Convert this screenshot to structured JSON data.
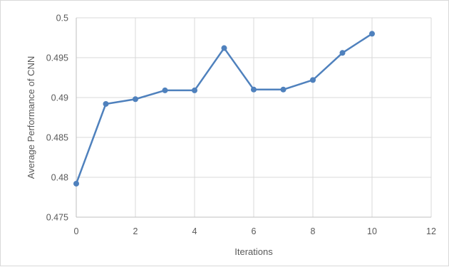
{
  "chart_data": {
    "type": "line",
    "title": "",
    "xlabel": "Iterations",
    "ylabel": "Average Performance  of CNN",
    "xlim": [
      0,
      12
    ],
    "ylim": [
      0.475,
      0.5
    ],
    "x_ticks": [
      0,
      2,
      4,
      6,
      8,
      10,
      12
    ],
    "x_tick_labels": [
      "0",
      "2",
      "4",
      "6",
      "8",
      "10",
      "12"
    ],
    "y_ticks": [
      0.475,
      0.48,
      0.485,
      0.49,
      0.495,
      0.5
    ],
    "y_tick_labels": [
      "0.475",
      "0.48",
      "0.485",
      "0.49",
      "0.495",
      "0.5"
    ],
    "grid": true,
    "legend": "none",
    "series": [
      {
        "color": "#4f81bd",
        "marker": "circle",
        "x": [
          0,
          1,
          2,
          3,
          4,
          5,
          6,
          7,
          8,
          9,
          10
        ],
        "y": [
          0.4792,
          0.4892,
          0.4898,
          0.4909,
          0.4909,
          0.4962,
          0.491,
          0.491,
          0.4922,
          0.4956,
          0.498
        ]
      }
    ]
  }
}
